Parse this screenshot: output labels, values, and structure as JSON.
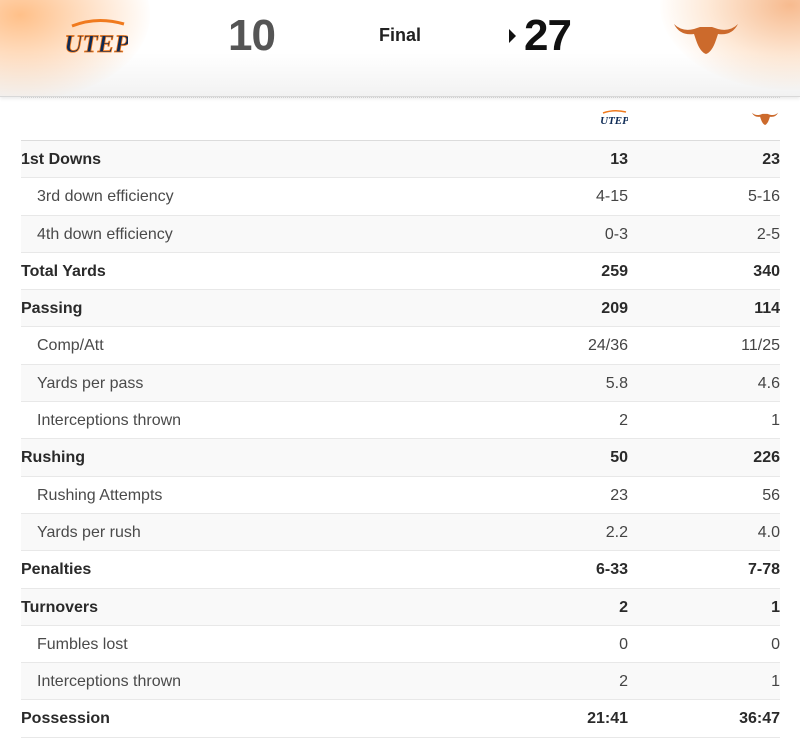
{
  "scoreboard": {
    "away": {
      "name": "UTEP",
      "logo_text": "UTEP",
      "score": "10",
      "color": "#0d2a55"
    },
    "home": {
      "name": "Texas",
      "logo_icon": "longhorn-icon",
      "score": "27",
      "color": "#cc6a2c"
    },
    "status": "Final",
    "winner": "home"
  },
  "table": {
    "columns": [
      "UTEP",
      "Texas"
    ],
    "rows": [
      {
        "label": "1st Downs",
        "away": "13",
        "home": "23",
        "type": "main"
      },
      {
        "label": "3rd down efficiency",
        "away": "4-15",
        "home": "5-16",
        "type": "sub"
      },
      {
        "label": "4th down efficiency",
        "away": "0-3",
        "home": "2-5",
        "type": "sub"
      },
      {
        "label": "Total Yards",
        "away": "259",
        "home": "340",
        "type": "main"
      },
      {
        "label": "Passing",
        "away": "209",
        "home": "114",
        "type": "main"
      },
      {
        "label": "Comp/Att",
        "away": "24/36",
        "home": "11/25",
        "type": "sub"
      },
      {
        "label": "Yards per pass",
        "away": "5.8",
        "home": "4.6",
        "type": "sub"
      },
      {
        "label": "Interceptions thrown",
        "away": "2",
        "home": "1",
        "type": "sub"
      },
      {
        "label": "Rushing",
        "away": "50",
        "home": "226",
        "type": "main"
      },
      {
        "label": "Rushing Attempts",
        "away": "23",
        "home": "56",
        "type": "sub"
      },
      {
        "label": "Yards per rush",
        "away": "2.2",
        "home": "4.0",
        "type": "sub"
      },
      {
        "label": "Penalties",
        "away": "6-33",
        "home": "7-78",
        "type": "main"
      },
      {
        "label": "Turnovers",
        "away": "2",
        "home": "1",
        "type": "main"
      },
      {
        "label": "Fumbles lost",
        "away": "0",
        "home": "0",
        "type": "sub"
      },
      {
        "label": "Interceptions thrown",
        "away": "2",
        "home": "1",
        "type": "sub"
      },
      {
        "label": "Possession",
        "away": "21:41",
        "home": "36:47",
        "type": "main"
      }
    ]
  }
}
